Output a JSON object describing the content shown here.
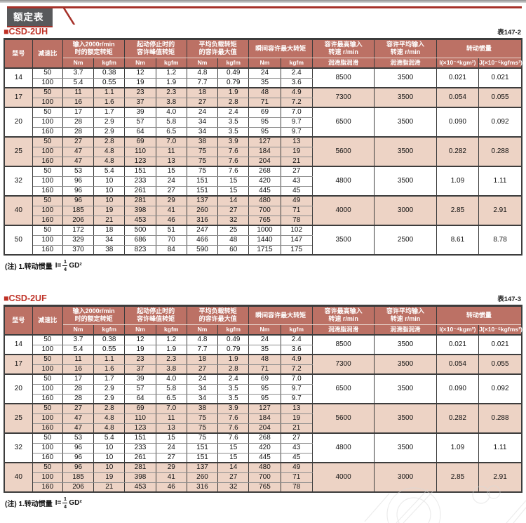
{
  "page": {
    "banner_title": "额定表"
  },
  "note": {
    "prefix": "(注) 1.转动惯量",
    "lhs": "I=",
    "num": "1",
    "den": "4",
    "suffix": "GD²"
  },
  "table_header": {
    "col_model": "型号",
    "col_ratio": "减速比",
    "groups": [
      {
        "line1": "输入2000r/min",
        "line2": "时的额定转矩"
      },
      {
        "line1": "起动停止时的",
        "line2": "容许峰值转矩"
      },
      {
        "line1": "平均负载转矩",
        "line2": "的容许最大值"
      },
      {
        "line1": "瞬间容许最大转矩",
        "line2": ""
      }
    ],
    "unit_nm": "Nm",
    "unit_kgfm": "kgfm",
    "speed_max": {
      "line1": "容许最高输入",
      "line2": "转速 r/min",
      "sub": "润滑脂润滑"
    },
    "speed_avg": {
      "line1": "容许平均输入",
      "line2": "转速 r/min",
      "sub": "润滑脂润滑"
    },
    "inertia": {
      "label": "转动惯量",
      "unit_i": "I(×10⁻⁴kgm²)",
      "unit_j": "J(×10⁻⁵kgfms²)"
    }
  },
  "tables": [
    {
      "title": "■CSD-2UH",
      "table_no": "表147-2",
      "groups": [
        {
          "model": "14",
          "rows": [
            [
              "50",
              "3.7",
              "0.38",
              "12",
              "1.2",
              "4.8",
              "0.49",
              "24",
              "2.4"
            ],
            [
              "100",
              "5.4",
              "0.55",
              "19",
              "1.9",
              "7.7",
              "0.79",
              "35",
              "3.6"
            ]
          ],
          "speed_max": "8500",
          "speed_avg": "3500",
          "inertia_i": "0.021",
          "inertia_j": "0.021"
        },
        {
          "model": "17",
          "rows": [
            [
              "50",
              "11",
              "1.1",
              "23",
              "2.3",
              "18",
              "1.9",
              "48",
              "4.9"
            ],
            [
              "100",
              "16",
              "1.6",
              "37",
              "3.8",
              "27",
              "2.8",
              "71",
              "7.2"
            ]
          ],
          "speed_max": "7300",
          "speed_avg": "3500",
          "inertia_i": "0.054",
          "inertia_j": "0.055"
        },
        {
          "model": "20",
          "rows": [
            [
              "50",
              "17",
              "1.7",
              "39",
              "4.0",
              "24",
              "2.4",
              "69",
              "7.0"
            ],
            [
              "100",
              "28",
              "2.9",
              "57",
              "5.8",
              "34",
              "3.5",
              "95",
              "9.7"
            ],
            [
              "160",
              "28",
              "2.9",
              "64",
              "6.5",
              "34",
              "3.5",
              "95",
              "9.7"
            ]
          ],
          "speed_max": "6500",
          "speed_avg": "3500",
          "inertia_i": "0.090",
          "inertia_j": "0.092"
        },
        {
          "model": "25",
          "rows": [
            [
              "50",
              "27",
              "2.8",
              "69",
              "7.0",
              "38",
              "3.9",
              "127",
              "13"
            ],
            [
              "100",
              "47",
              "4.8",
              "110",
              "11",
              "75",
              "7.6",
              "184",
              "19"
            ],
            [
              "160",
              "47",
              "4.8",
              "123",
              "13",
              "75",
              "7.6",
              "204",
              "21"
            ]
          ],
          "speed_max": "5600",
          "speed_avg": "3500",
          "inertia_i": "0.282",
          "inertia_j": "0.288"
        },
        {
          "model": "32",
          "rows": [
            [
              "50",
              "53",
              "5.4",
              "151",
              "15",
              "75",
              "7.6",
              "268",
              "27"
            ],
            [
              "100",
              "96",
              "10",
              "233",
              "24",
              "151",
              "15",
              "420",
              "43"
            ],
            [
              "160",
              "96",
              "10",
              "261",
              "27",
              "151",
              "15",
              "445",
              "45"
            ]
          ],
          "speed_max": "4800",
          "speed_avg": "3500",
          "inertia_i": "1.09",
          "inertia_j": "1.11"
        },
        {
          "model": "40",
          "rows": [
            [
              "50",
              "96",
              "10",
              "281",
              "29",
              "137",
              "14",
              "480",
              "49"
            ],
            [
              "100",
              "185",
              "19",
              "398",
              "41",
              "260",
              "27",
              "700",
              "71"
            ],
            [
              "160",
              "206",
              "21",
              "453",
              "46",
              "316",
              "32",
              "765",
              "78"
            ]
          ],
          "speed_max": "4000",
          "speed_avg": "3000",
          "inertia_i": "2.85",
          "inertia_j": "2.91"
        },
        {
          "model": "50",
          "rows": [
            [
              "50",
              "172",
              "18",
              "500",
              "51",
              "247",
              "25",
              "1000",
              "102"
            ],
            [
              "100",
              "329",
              "34",
              "686",
              "70",
              "466",
              "48",
              "1440",
              "147"
            ],
            [
              "160",
              "370",
              "38",
              "823",
              "84",
              "590",
              "60",
              "1715",
              "175"
            ]
          ],
          "speed_max": "3500",
          "speed_avg": "2500",
          "inertia_i": "8.61",
          "inertia_j": "8.78"
        }
      ]
    },
    {
      "title": "■CSD-2UF",
      "table_no": "表147-3",
      "groups": [
        {
          "model": "14",
          "rows": [
            [
              "50",
              "3.7",
              "0.38",
              "12",
              "1.2",
              "4.8",
              "0.49",
              "24",
              "2.4"
            ],
            [
              "100",
              "5.4",
              "0.55",
              "19",
              "1.9",
              "7.7",
              "0.79",
              "35",
              "3.6"
            ]
          ],
          "speed_max": "8500",
          "speed_avg": "3500",
          "inertia_i": "0.021",
          "inertia_j": "0.021"
        },
        {
          "model": "17",
          "rows": [
            [
              "50",
              "11",
              "1.1",
              "23",
              "2.3",
              "18",
              "1.9",
              "48",
              "4.9"
            ],
            [
              "100",
              "16",
              "1.6",
              "37",
              "3.8",
              "27",
              "2.8",
              "71",
              "7.2"
            ]
          ],
          "speed_max": "7300",
          "speed_avg": "3500",
          "inertia_i": "0.054",
          "inertia_j": "0.055"
        },
        {
          "model": "20",
          "rows": [
            [
              "50",
              "17",
              "1.7",
              "39",
              "4.0",
              "24",
              "2.4",
              "69",
              "7.0"
            ],
            [
              "100",
              "28",
              "2.9",
              "57",
              "5.8",
              "34",
              "3.5",
              "95",
              "9.7"
            ],
            [
              "160",
              "28",
              "2.9",
              "64",
              "6.5",
              "34",
              "3.5",
              "95",
              "9.7"
            ]
          ],
          "speed_max": "6500",
          "speed_avg": "3500",
          "inertia_i": "0.090",
          "inertia_j": "0.092"
        },
        {
          "model": "25",
          "rows": [
            [
              "50",
              "27",
              "2.8",
              "69",
              "7.0",
              "38",
              "3.9",
              "127",
              "13"
            ],
            [
              "100",
              "47",
              "4.8",
              "110",
              "11",
              "75",
              "7.6",
              "184",
              "19"
            ],
            [
              "160",
              "47",
              "4.8",
              "123",
              "13",
              "75",
              "7.6",
              "204",
              "21"
            ]
          ],
          "speed_max": "5600",
          "speed_avg": "3500",
          "inertia_i": "0.282",
          "inertia_j": "0.288"
        },
        {
          "model": "32",
          "rows": [
            [
              "50",
              "53",
              "5.4",
              "151",
              "15",
              "75",
              "7.6",
              "268",
              "27"
            ],
            [
              "100",
              "96",
              "10",
              "233",
              "24",
              "151",
              "15",
              "420",
              "43"
            ],
            [
              "160",
              "96",
              "10",
              "261",
              "27",
              "151",
              "15",
              "445",
              "45"
            ]
          ],
          "speed_max": "4800",
          "speed_avg": "3500",
          "inertia_i": "1.09",
          "inertia_j": "1.11"
        },
        {
          "model": "40",
          "rows": [
            [
              "50",
              "96",
              "10",
              "281",
              "29",
              "137",
              "14",
              "480",
              "49"
            ],
            [
              "100",
              "185",
              "19",
              "398",
              "41",
              "260",
              "27",
              "700",
              "71"
            ],
            [
              "160",
              "206",
              "21",
              "453",
              "46",
              "316",
              "32",
              "765",
              "78"
            ]
          ],
          "speed_max": "4000",
          "speed_avg": "3000",
          "inertia_i": "2.85",
          "inertia_j": "2.91"
        }
      ]
    }
  ],
  "colors": {
    "header_bg": "#bc7165",
    "band_pink": "#edd3c5",
    "accent_red": "#a63129",
    "title_red": "#bf3126",
    "tab_gray": "#58595b"
  }
}
